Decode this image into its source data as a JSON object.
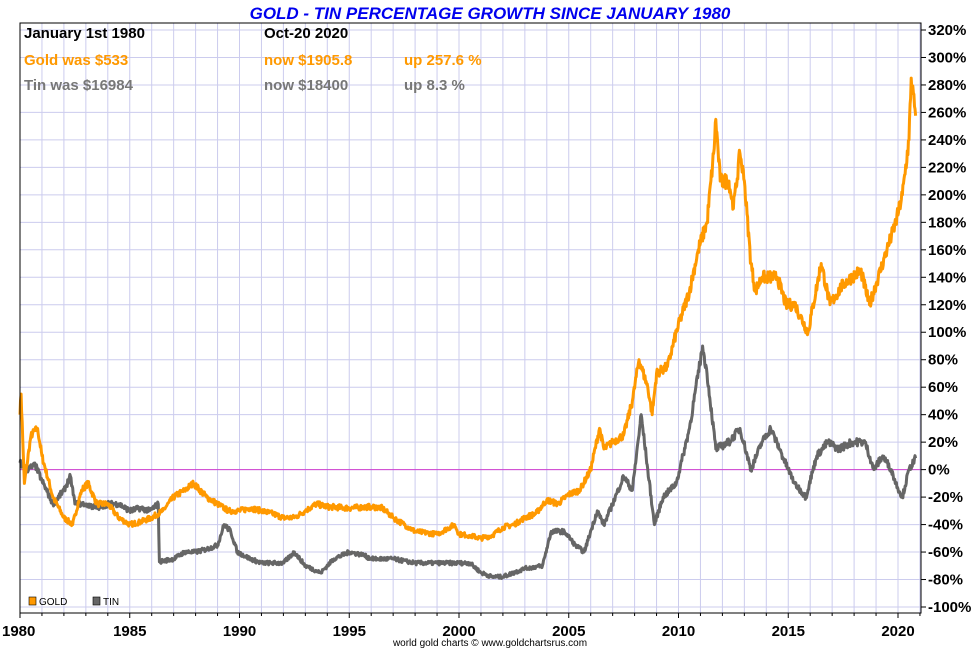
{
  "chart_data": {
    "type": "line",
    "title": "GOLD - TIN PERCENTAGE GROWTH SINCE JANUARY 1980",
    "xlabel": "",
    "ylabel": "",
    "xlim": [
      1980,
      2021.05
    ],
    "ylim": [
      -100,
      320
    ],
    "grid": true,
    "legend_placement": "bottom-left",
    "x_ticks": [
      "1980",
      "1985",
      "1990",
      "1995",
      "2000",
      "2005",
      "2010",
      "2015",
      "2020"
    ],
    "y_ticks": [
      "320%",
      "300%",
      "280%",
      "260%",
      "240%",
      "220%",
      "200%",
      "180%",
      "160%",
      "140%",
      "120%",
      "100%",
      "80%",
      "60%",
      "40%",
      "20%",
      "0%",
      "-20%",
      "-40%",
      "-60%",
      "-80%",
      "-100%"
    ],
    "colors": {
      "gold": "#ff9900",
      "tin": "#666666",
      "zero_line": "#d040d0",
      "grid": "#ccccee",
      "title": "#0000ee"
    },
    "series": [
      {
        "name": "GOLD",
        "color": "#ff9900",
        "x": [
          1980.0,
          1980.05,
          1980.2,
          1980.5,
          1980.8,
          1981.0,
          1981.5,
          1982.0,
          1982.4,
          1982.8,
          1983.1,
          1983.5,
          1984.0,
          1984.5,
          1985.0,
          1985.5,
          1986.0,
          1986.5,
          1987.0,
          1987.5,
          1987.9,
          1988.5,
          1989.0,
          1989.5,
          1990.0,
          1990.5,
          1991.0,
          1991.5,
          1992.0,
          1992.5,
          1993.0,
          1993.5,
          1994.0,
          1995.0,
          1996.0,
          1996.5,
          1997.0,
          1997.5,
          1998.0,
          1999.0,
          1999.8,
          2000.0,
          2000.5,
          2001.0,
          2001.5,
          2002.0,
          2002.5,
          2003.0,
          2003.5,
          2004.0,
          2004.5,
          2005.0,
          2005.5,
          2006.0,
          2006.4,
          2006.6,
          2007.0,
          2007.5,
          2007.9,
          2008.2,
          2008.6,
          2008.8,
          2009.0,
          2009.5,
          2009.9,
          2010.5,
          2010.9,
          2011.3,
          2011.6,
          2011.7,
          2011.9,
          2012.3,
          2012.5,
          2012.8,
          2013.0,
          2013.3,
          2013.5,
          2013.8,
          2014.0,
          2014.5,
          2014.9,
          2015.3,
          2015.9,
          2016.5,
          2016.9,
          2017.5,
          2017.9,
          2018.3,
          2018.7,
          2019.0,
          2019.5,
          2019.9,
          2020.2,
          2020.5,
          2020.6,
          2020.8
        ],
        "values": [
          40,
          55,
          -10,
          25,
          30,
          10,
          -20,
          -35,
          -40,
          -15,
          -10,
          -25,
          -25,
          -35,
          -40,
          -38,
          -35,
          -30,
          -20,
          -15,
          -10,
          -20,
          -25,
          -30,
          -30,
          -28,
          -30,
          -32,
          -35,
          -35,
          -30,
          -25,
          -27,
          -28,
          -27,
          -28,
          -35,
          -40,
          -45,
          -47,
          -40,
          -47,
          -48,
          -50,
          -48,
          -42,
          -40,
          -35,
          -32,
          -22,
          -25,
          -18,
          -15,
          0,
          30,
          15,
          20,
          25,
          50,
          80,
          60,
          40,
          70,
          75,
          100,
          130,
          160,
          180,
          230,
          255,
          210,
          210,
          190,
          230,
          210,
          150,
          130,
          140,
          140,
          140,
          120,
          120,
          100,
          150,
          120,
          135,
          140,
          145,
          120,
          135,
          160,
          180,
          200,
          240,
          285,
          257.6
        ]
      },
      {
        "name": "TIN",
        "color": "#666666",
        "x": [
          1980.0,
          1980.3,
          1980.7,
          1981.0,
          1981.5,
          1982.0,
          1982.3,
          1982.5,
          1983.0,
          1983.5,
          1984.0,
          1984.5,
          1985.0,
          1985.5,
          1985.9,
          1986.3,
          1986.35,
          1987.0,
          1987.5,
          1988.0,
          1988.5,
          1989.0,
          1989.3,
          1989.6,
          1989.9,
          1990.5,
          1991.0,
          1992.0,
          1992.5,
          1993.0,
          1993.7,
          1994.3,
          1995.0,
          1995.6,
          1996.0,
          1997.0,
          1998.0,
          1999.0,
          2000.0,
          2000.5,
          2001.0,
          2001.5,
          2002.0,
          2003.0,
          2003.8,
          2004.2,
          2004.8,
          2005.3,
          2005.7,
          2006.3,
          2006.6,
          2007.0,
          2007.5,
          2007.9,
          2008.3,
          2008.6,
          2008.9,
          2009.3,
          2009.9,
          2010.5,
          2011.1,
          2011.3,
          2011.7,
          2012.3,
          2012.8,
          2013.3,
          2013.8,
          2014.2,
          2014.6,
          2015.0,
          2015.3,
          2015.8,
          2016.3,
          2016.8,
          2017.3,
          2017.9,
          2018.5,
          2018.9,
          2019.3,
          2019.7,
          2019.9,
          2020.2,
          2020.5,
          2020.8
        ],
        "values": [
          5,
          0,
          3,
          -8,
          -25,
          -15,
          -5,
          -25,
          -25,
          -28,
          -25,
          -25,
          -30,
          -28,
          -30,
          -25,
          -67,
          -65,
          -60,
          -60,
          -58,
          -55,
          -40,
          -45,
          -60,
          -65,
          -68,
          -68,
          -60,
          -70,
          -75,
          -65,
          -60,
          -62,
          -65,
          -65,
          -68,
          -68,
          -68,
          -68,
          -75,
          -78,
          -78,
          -72,
          -70,
          -45,
          -45,
          -55,
          -60,
          -30,
          -40,
          -25,
          -5,
          -15,
          40,
          0,
          -40,
          -20,
          -10,
          30,
          90,
          70,
          15,
          20,
          30,
          0,
          20,
          30,
          15,
          0,
          -10,
          -20,
          10,
          20,
          15,
          20,
          20,
          0,
          10,
          0,
          -10,
          -20,
          0,
          8.3
        ]
      }
    ]
  },
  "header": {
    "title": "GOLD - TIN PERCENTAGE GROWTH SINCE JANUARY 1980",
    "start_label": "January 1st 1980",
    "end_label": "Oct-20  2020",
    "gold_was": "Gold was $533",
    "gold_now": "now $1905.8",
    "gold_up": "up 257.6 %",
    "tin_was": "Tin was $16984",
    "tin_now": "now $18400",
    "tin_up": "up 8.3 %"
  },
  "legend": {
    "gold": "GOLD",
    "tin": "TIN"
  },
  "footer": {
    "credit": "world gold charts © www.goldchartsrus.com"
  }
}
